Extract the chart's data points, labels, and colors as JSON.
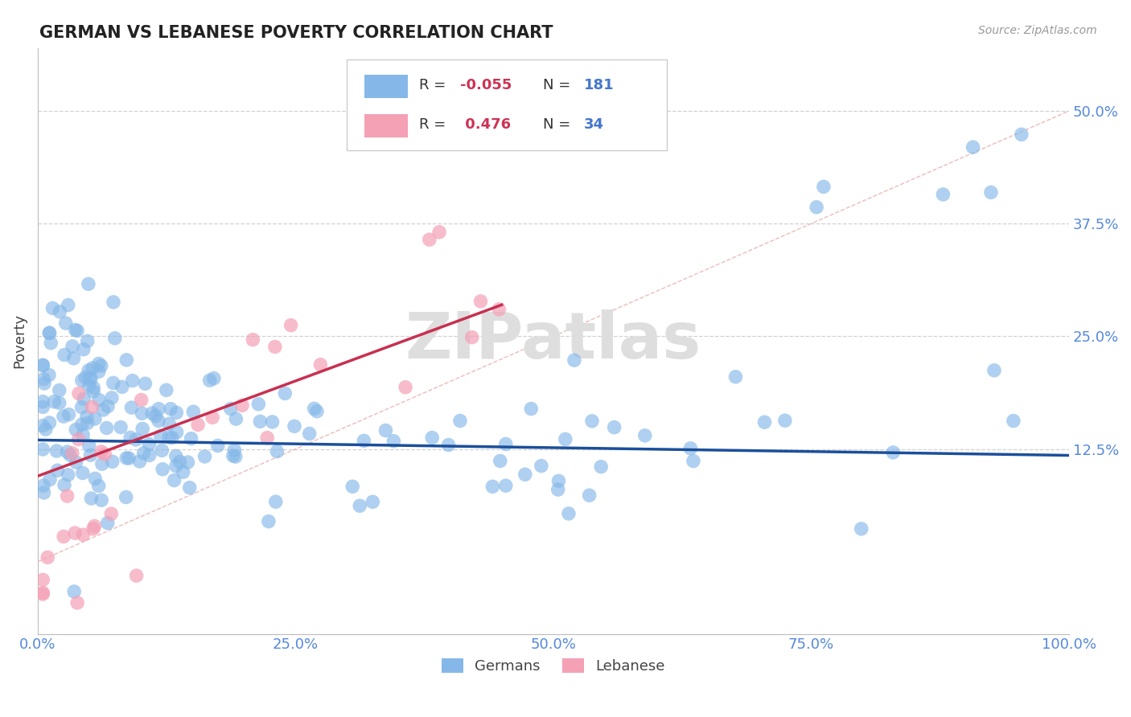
{
  "title": "GERMAN VS LEBANESE POVERTY CORRELATION CHART",
  "source_text": "Source: ZipAtlas.com",
  "ylabel": "Poverty",
  "xlim": [
    0.0,
    1.0
  ],
  "ylim": [
    -0.08,
    0.57
  ],
  "yticks": [
    0.125,
    0.25,
    0.375,
    0.5
  ],
  "ytick_labels": [
    "12.5%",
    "25.0%",
    "37.5%",
    "50.0%"
  ],
  "xticks": [
    0.0,
    0.25,
    0.5,
    0.75,
    1.0
  ],
  "xtick_labels": [
    "0.0%",
    "25.0%",
    "50.0%",
    "75.0%",
    "100.0%"
  ],
  "german_R": -0.055,
  "german_N": 181,
  "lebanese_R": 0.476,
  "lebanese_N": 34,
  "blue_color": "#85B8E8",
  "pink_color": "#F4A0B5",
  "blue_line_color": "#1B4F9C",
  "pink_line_color": "#C83050",
  "title_color": "#222222",
  "axis_label_color": "#444444",
  "tick_color": "#5588DD",
  "grid_color": "#CCCCCC",
  "watermark_color": "#DDDDDD",
  "background_color": "#FFFFFF",
  "legend_R_color": "#CC3355",
  "legend_N_color": "#4477CC"
}
